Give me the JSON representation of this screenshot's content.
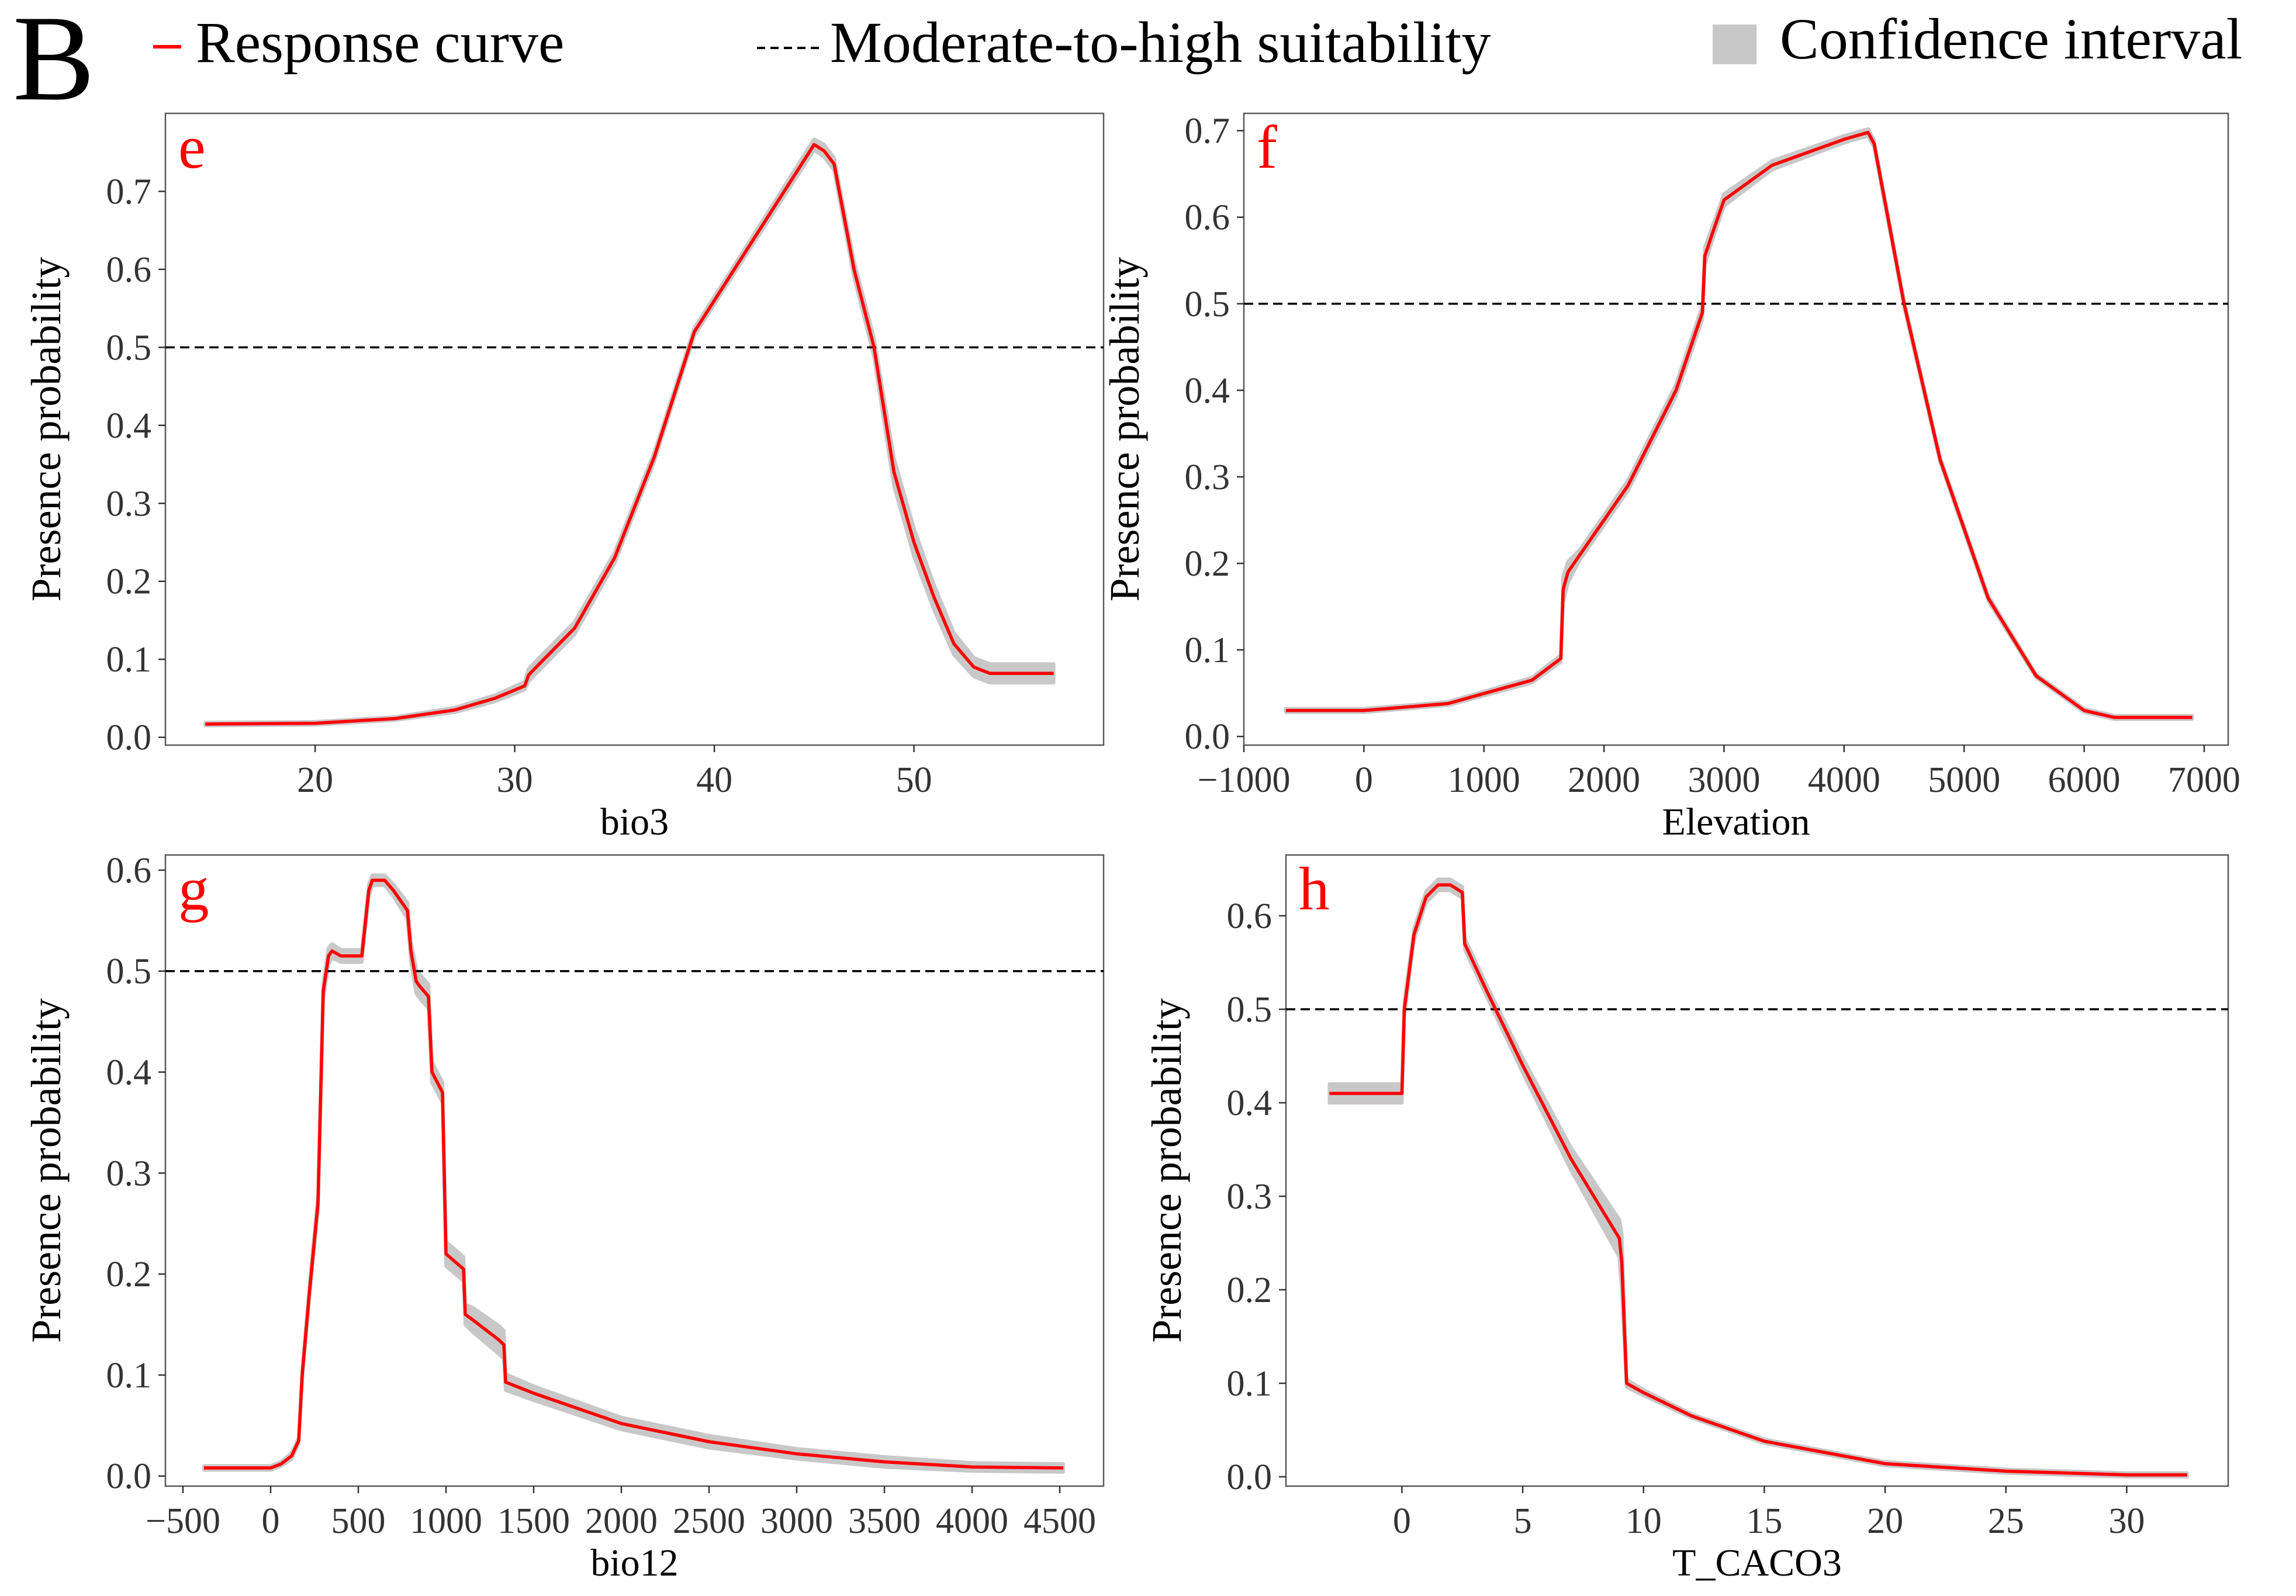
{
  "figure": {
    "panel_letter": "B",
    "legend": {
      "response_label": "Response curve",
      "threshold_label": "Moderate-to-high suitability",
      "ci_label": "Confidence interval"
    },
    "colors": {
      "curve": "#ff0000",
      "ci": "#c8c8c8",
      "threshold": "#000000",
      "frame": "#595959"
    }
  },
  "chart_data": [
    {
      "type": "line",
      "panel": "e",
      "title": "",
      "xlabel": "bio3",
      "ylabel": "Presence probability",
      "xlim": [
        12.5,
        59.5
      ],
      "ylim": [
        -0.01,
        0.8
      ],
      "xticks": [
        20,
        30,
        40,
        50
      ],
      "xtick_labels": [
        "20",
        "30",
        "40",
        "50"
      ],
      "yticks": [
        0.0,
        0.1,
        0.2,
        0.3,
        0.4,
        0.5,
        0.6,
        0.7
      ],
      "ytick_labels": [
        "0.0",
        "0.1",
        "0.2",
        "0.3",
        "0.4",
        "0.5",
        "0.6",
        "0.7"
      ],
      "threshold": 0.5,
      "series": [
        {
          "name": "Response curve",
          "x": [
            14.5,
            20,
            24,
            27,
            29,
            30.5,
            30.7,
            31,
            33,
            35,
            37,
            39,
            41,
            43,
            45,
            45.5,
            46,
            47,
            48,
            49,
            50,
            51,
            52,
            53,
            53.8,
            57
          ],
          "y": [
            0.017,
            0.018,
            0.024,
            0.035,
            0.05,
            0.066,
            0.08,
            0.088,
            0.14,
            0.23,
            0.36,
            0.52,
            0.6,
            0.68,
            0.76,
            0.752,
            0.735,
            0.6,
            0.5,
            0.34,
            0.25,
            0.18,
            0.12,
            0.09,
            0.082,
            0.082
          ],
          "ci_half": [
            0.002,
            0.002,
            0.002,
            0.003,
            0.004,
            0.005,
            0.008,
            0.008,
            0.008,
            0.007,
            0.006,
            0.005,
            0.005,
            0.006,
            0.007,
            0.008,
            0.008,
            0.01,
            0.012,
            0.018,
            0.018,
            0.016,
            0.014,
            0.012,
            0.012,
            0.012
          ]
        }
      ]
    },
    {
      "type": "line",
      "panel": "f",
      "title": "",
      "xlabel": "Elevation",
      "ylabel": "Presence probability",
      "xlim": [
        -1000,
        7200
      ],
      "ylim": [
        -0.01,
        0.72
      ],
      "xticks": [
        -1000,
        0,
        1000,
        2000,
        3000,
        4000,
        5000,
        6000,
        7000
      ],
      "xtick_labels": [
        "−1000",
        "0",
        "1000",
        "2000",
        "3000",
        "4000",
        "5000",
        "6000",
        "7000"
      ],
      "yticks": [
        0.0,
        0.1,
        0.2,
        0.3,
        0.4,
        0.5,
        0.6,
        0.7
      ],
      "ytick_labels": [
        "0.0",
        "0.1",
        "0.2",
        "0.3",
        "0.4",
        "0.5",
        "0.6",
        "0.7"
      ],
      "threshold": 0.5,
      "series": [
        {
          "name": "Response curve",
          "x": [
            -650,
            0,
            700,
            1400,
            1640,
            1660,
            1700,
            1800,
            2200,
            2600,
            2820,
            2840,
            2900,
            3000,
            3400,
            4000,
            4200,
            4250,
            4500,
            4800,
            5200,
            5600,
            6000,
            6250,
            6900
          ],
          "y": [
            0.03,
            0.03,
            0.038,
            0.065,
            0.09,
            0.17,
            0.19,
            0.21,
            0.29,
            0.4,
            0.49,
            0.555,
            0.58,
            0.62,
            0.66,
            0.69,
            0.698,
            0.685,
            0.5,
            0.32,
            0.16,
            0.07,
            0.03,
            0.022,
            0.022
          ],
          "ci_half": [
            0.002,
            0.002,
            0.002,
            0.003,
            0.004,
            0.015,
            0.012,
            0.006,
            0.006,
            0.007,
            0.008,
            0.01,
            0.008,
            0.007,
            0.005,
            0.004,
            0.004,
            0.004,
            0.004,
            0.003,
            0.003,
            0.002,
            0.002,
            0.002,
            0.002
          ]
        }
      ]
    },
    {
      "type": "line",
      "panel": "g",
      "title": "",
      "xlabel": "bio12",
      "ylabel": "Presence probability",
      "xlim": [
        -600,
        4750
      ],
      "ylim": [
        -0.01,
        0.615
      ],
      "xticks": [
        -500,
        0,
        500,
        1000,
        1500,
        2000,
        2500,
        3000,
        3500,
        4000,
        4500
      ],
      "xtick_labels": [
        "−500",
        "0",
        "500",
        "1000",
        "1500",
        "2000",
        "2500",
        "3000",
        "3500",
        "4000",
        "4500"
      ],
      "yticks": [
        0.0,
        0.1,
        0.2,
        0.3,
        0.4,
        0.5,
        0.6
      ],
      "ytick_labels": [
        "0.0",
        "0.1",
        "0.2",
        "0.3",
        "0.4",
        "0.5",
        "0.6"
      ],
      "threshold": 0.5,
      "series": [
        {
          "name": "Response curve",
          "x": [
            -380,
            0,
            60,
            120,
            160,
            180,
            220,
            270,
            300,
            330,
            350,
            400,
            520,
            560,
            580,
            650,
            700,
            780,
            800,
            830,
            850,
            900,
            920,
            950,
            980,
            1000,
            1100,
            1110,
            1150,
            1300,
            1330,
            1340,
            1500,
            2000,
            2500,
            3000,
            3500,
            4000,
            4520
          ],
          "y": [
            0.008,
            0.008,
            0.012,
            0.02,
            0.035,
            0.1,
            0.18,
            0.27,
            0.48,
            0.515,
            0.52,
            0.515,
            0.515,
            0.58,
            0.59,
            0.59,
            0.58,
            0.56,
            0.52,
            0.49,
            0.485,
            0.475,
            0.4,
            0.39,
            0.38,
            0.22,
            0.205,
            0.16,
            0.155,
            0.135,
            0.13,
            0.093,
            0.082,
            0.052,
            0.034,
            0.022,
            0.014,
            0.009,
            0.008
          ],
          "ci_half": [
            0.002,
            0.002,
            0.002,
            0.003,
            0.003,
            0.005,
            0.006,
            0.008,
            0.008,
            0.008,
            0.007,
            0.006,
            0.006,
            0.006,
            0.005,
            0.005,
            0.006,
            0.008,
            0.01,
            0.012,
            0.012,
            0.012,
            0.01,
            0.01,
            0.01,
            0.012,
            0.012,
            0.01,
            0.012,
            0.014,
            0.014,
            0.008,
            0.007,
            0.006,
            0.006,
            0.005,
            0.005,
            0.004,
            0.004
          ]
        }
      ]
    },
    {
      "type": "line",
      "panel": "h",
      "title": "",
      "xlabel": "T_CACO3",
      "ylabel": "Presence probability",
      "xlim": [
        -4.8,
        34.2
      ],
      "ylim": [
        -0.01,
        0.665
      ],
      "xticks": [
        0,
        5,
        10,
        15,
        20,
        25,
        30
      ],
      "xtick_labels": [
        "0",
        "5",
        "10",
        "15",
        "20",
        "25",
        "30"
      ],
      "yticks": [
        0.0,
        0.1,
        0.2,
        0.3,
        0.4,
        0.5,
        0.6
      ],
      "ytick_labels": [
        "0.0",
        "0.1",
        "0.2",
        "0.3",
        "0.4",
        "0.5",
        "0.6"
      ],
      "threshold": 0.5,
      "series": [
        {
          "name": "Response curve",
          "x": [
            -3,
            0,
            0.1,
            0.5,
            1,
            1.5,
            2,
            2.5,
            2.6,
            3.5,
            5,
            7,
            9,
            9.1,
            9.3,
            10,
            12,
            15,
            20,
            25,
            30,
            32.5
          ],
          "y": [
            0.41,
            0.41,
            0.5,
            0.58,
            0.62,
            0.633,
            0.633,
            0.625,
            0.57,
            0.52,
            0.44,
            0.34,
            0.255,
            0.23,
            0.1,
            0.09,
            0.065,
            0.038,
            0.014,
            0.006,
            0.002,
            0.002
          ],
          "ci_half": [
            0.01,
            0.01,
            0.008,
            0.006,
            0.006,
            0.006,
            0.006,
            0.006,
            0.006,
            0.006,
            0.008,
            0.012,
            0.02,
            0.03,
            0.004,
            0.003,
            0.002,
            0.002,
            0.002,
            0.002,
            0.002,
            0.002
          ]
        }
      ]
    }
  ]
}
